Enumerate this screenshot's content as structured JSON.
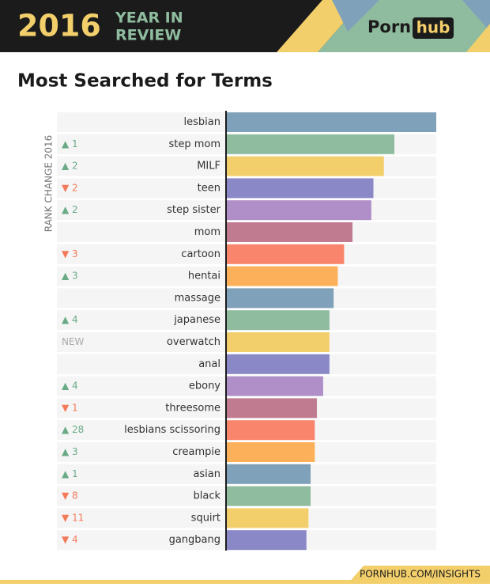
{
  "header": {
    "year": "2016",
    "line1": "YEAR IN",
    "line2": "REVIEW",
    "brand1": "Porn",
    "brand2": "hub"
  },
  "footer": "PORNHUB.COM/INSIGHTS",
  "chart_data": {
    "type": "hbar",
    "title": "Most Searched for Terms",
    "rank_axis_label": "RANK CHANGE 2016",
    "categories": [
      "lesbian",
      "step mom",
      "MILF",
      "teen",
      "step sister",
      "mom",
      "cartoon",
      "hentai",
      "massage",
      "japanese",
      "overwatch",
      "anal",
      "ebony",
      "threesome",
      "lesbians scissoring",
      "creampie",
      "asian",
      "black",
      "squirt",
      "gangbang"
    ],
    "values": [
      100,
      80,
      75,
      70,
      69,
      60,
      56,
      53,
      51,
      49,
      49,
      49,
      46,
      43,
      42,
      42,
      40,
      40,
      39,
      38
    ],
    "rank_change": [
      null,
      "▲ 1",
      "▲ 2",
      "▼ 2",
      "▲ 2",
      null,
      "▼ 3",
      "▲ 3",
      null,
      "▲ 4",
      "NEW",
      null,
      "▲ 4",
      "▼ 1",
      "▲ 28",
      "▲ 3",
      "▲ 1",
      "▼ 8",
      "▼ 11",
      "▼ 4"
    ],
    "colors": [
      "#7fa1b9",
      "#8fbc9f",
      "#f3cf6c",
      "#8a88c6",
      "#b08fc9",
      "#c07b90",
      "#f9866c",
      "#fdb05a",
      "#7fa1b9",
      "#8fbc9f",
      "#f3cf6c",
      "#8a88c6",
      "#b08fc9",
      "#c07b90",
      "#f9866c",
      "#fdb05a",
      "#7fa1b9",
      "#8fbc9f",
      "#f3cf6c",
      "#8a88c6"
    ]
  }
}
